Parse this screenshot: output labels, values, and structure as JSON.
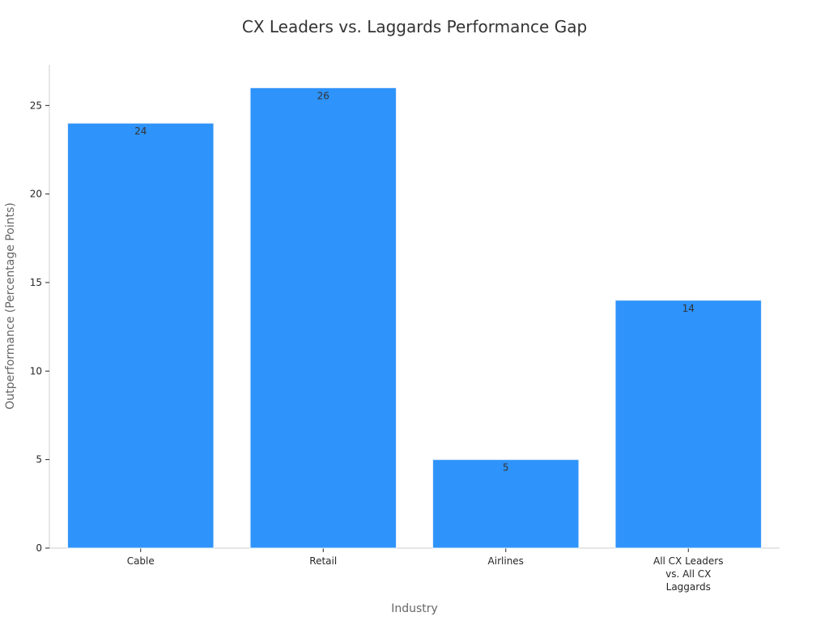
{
  "chart_data": {
    "type": "bar",
    "title": "CX Leaders vs. Laggards Performance Gap",
    "xlabel": "Industry",
    "ylabel": "Outperformance (Percentage Points)",
    "categories": [
      "Cable",
      "Retail",
      "Airlines",
      "All CX Leaders vs. All CX Laggards"
    ],
    "category_lines": [
      [
        "Cable"
      ],
      [
        "Retail"
      ],
      [
        "Airlines"
      ],
      [
        "All CX Leaders",
        "vs. All CX",
        "Laggards"
      ]
    ],
    "values": [
      24,
      26,
      5,
      14
    ],
    "data_labels": [
      "24",
      "26",
      "5",
      "14"
    ],
    "ylim": [
      0,
      27.3
    ],
    "yticks": [
      0,
      5,
      10,
      15,
      20,
      25
    ],
    "grid": false,
    "legend": "none",
    "colors": {
      "bar": "#2e93fa",
      "bar_edge": "#e6f0fa",
      "axis": "#cccccc",
      "tick_text": "#262626",
      "title_text": "#333333",
      "label_text": "#666666",
      "data_label_text": "#333333"
    }
  }
}
